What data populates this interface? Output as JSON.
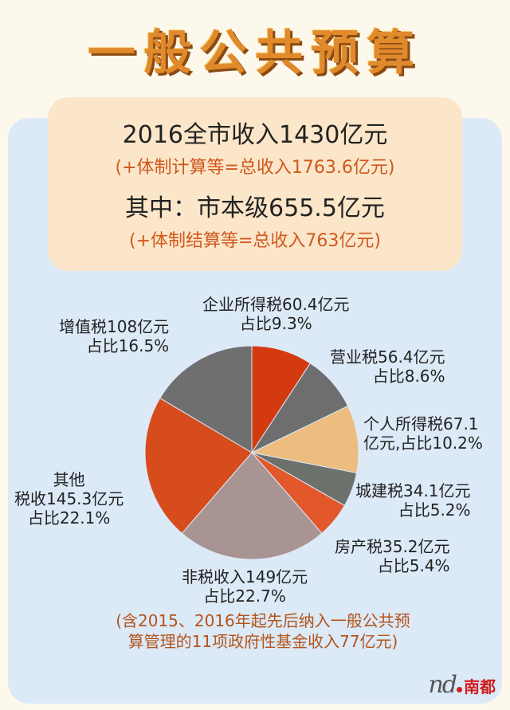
{
  "title": "一般公共预算",
  "summary": {
    "line1": "2016全市收入1430亿元",
    "line2": "(+体制计算等=总收入1763.6亿元)",
    "line3": "其中：市本级655.5亿元",
    "line4": "(+体制结算等=总收入763亿元)"
  },
  "chart_data": {
    "type": "pie",
    "slices": [
      {
        "name": "企业所得税",
        "value": 60.4,
        "percent": 9.3,
        "color": "#d43a10",
        "label1": "企业所得税60.4亿元",
        "label2": "占比9.3%"
      },
      {
        "name": "营业税",
        "value": 56.4,
        "percent": 8.6,
        "color": "#6e6e6e",
        "label1": "营业税56.4亿元",
        "label2": "占比8.6%"
      },
      {
        "name": "个人所得税",
        "value": 67.1,
        "percent": 10.2,
        "color": "#ecbd7e",
        "label1": "个人所得税67.1",
        "label2": "亿元,占比10.2%"
      },
      {
        "name": "城建税",
        "value": 34.1,
        "percent": 5.2,
        "color": "#6c716b",
        "label1": "城建税34.1亿元",
        "label2": "占比5.2%"
      },
      {
        "name": "房产税",
        "value": 35.2,
        "percent": 5.4,
        "color": "#e2582a",
        "label1": "房产税35.2亿元",
        "label2": "占比5.4%"
      },
      {
        "name": "非税收入",
        "value": 149,
        "percent": 22.7,
        "color": "#a99494",
        "label1": "非税收入149亿元",
        "label2": "占比22.7%"
      },
      {
        "name": "其他税收",
        "value": 145.3,
        "percent": 22.1,
        "color": "#d74c1c",
        "label1": "其他",
        "label2": "税收145.3亿元",
        "label3": "占比22.1%"
      },
      {
        "name": "增值税",
        "value": 108,
        "percent": 16.5,
        "color": "#6f6f6f",
        "label1": "增值税108亿元",
        "label2": "占比16.5%"
      }
    ],
    "note1": "(含2015、2016年起先后纳入一般公共预",
    "note2": "算管理的11项政府性基金收入77亿元)"
  },
  "logo": {
    "mark": "nd",
    "text": "南都",
    "dot_color": "#d01c1c"
  }
}
